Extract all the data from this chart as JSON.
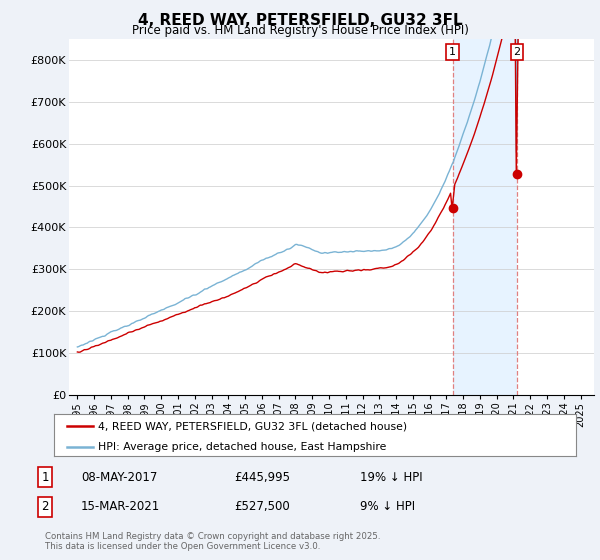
{
  "title": "4, REED WAY, PETERSFIELD, GU32 3FL",
  "subtitle": "Price paid vs. HM Land Registry's House Price Index (HPI)",
  "ylim": [
    0,
    850000
  ],
  "yticks": [
    0,
    100000,
    200000,
    300000,
    400000,
    500000,
    600000,
    700000,
    800000
  ],
  "ytick_labels": [
    "£0",
    "£100K",
    "£200K",
    "£300K",
    "£400K",
    "£500K",
    "£600K",
    "£700K",
    "£800K"
  ],
  "hpi_color": "#7ab3d4",
  "price_color": "#cc0000",
  "vline_color": "#e08080",
  "shade_color": "#ddeeff",
  "marker1_year": 2017.37,
  "marker2_year": 2021.21,
  "sale1_price": 445995,
  "sale2_price": 527500,
  "sale1_label": "08-MAY-2017",
  "sale1_price_str": "£445,995",
  "sale1_note": "19% ↓ HPI",
  "sale2_label": "15-MAR-2021",
  "sale2_price_str": "£527,500",
  "sale2_note": "9% ↓ HPI",
  "legend_line1": "4, REED WAY, PETERSFIELD, GU32 3FL (detached house)",
  "legend_line2": "HPI: Average price, detached house, East Hampshire",
  "footnote": "Contains HM Land Registry data © Crown copyright and database right 2025.\nThis data is licensed under the Open Government Licence v3.0.",
  "background_color": "#eef2f8",
  "plot_bg": "#ffffff",
  "start_year": 1995,
  "end_year": 2025.5,
  "n_months": 365
}
